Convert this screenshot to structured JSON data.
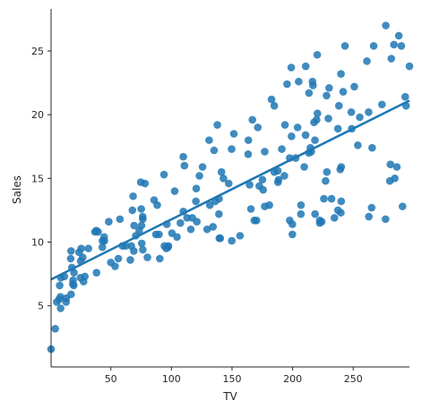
{
  "chart_data": {
    "type": "scatter",
    "title": "",
    "xlabel": "TV",
    "ylabel": "Sales",
    "xlim": [
      0.7,
      296.4
    ],
    "ylim": [
      0.2,
      28.3
    ],
    "xticks": [
      50,
      100,
      150,
      200,
      250
    ],
    "yticks": [
      5,
      10,
      15,
      20,
      25
    ],
    "grid": false,
    "legend": "none",
    "point_color": "#1f77b4",
    "regression": {
      "intercept": 7.0326,
      "slope": 0.0475,
      "color": "#1f77b4"
    },
    "points": [
      {
        "x": 230.1,
        "y": 22.1
      },
      {
        "x": 44.5,
        "y": 10.4
      },
      {
        "x": 17.2,
        "y": 9.3
      },
      {
        "x": 151.5,
        "y": 18.5
      },
      {
        "x": 180.8,
        "y": 12.9
      },
      {
        "x": 8.7,
        "y": 7.2
      },
      {
        "x": 57.5,
        "y": 11.8
      },
      {
        "x": 120.2,
        "y": 13.2
      },
      {
        "x": 8.6,
        "y": 4.8
      },
      {
        "x": 199.8,
        "y": 10.6
      },
      {
        "x": 66.1,
        "y": 8.6
      },
      {
        "x": 214.7,
        "y": 17.4
      },
      {
        "x": 23.8,
        "y": 9.2
      },
      {
        "x": 97.5,
        "y": 9.7
      },
      {
        "x": 204.1,
        "y": 19.0
      },
      {
        "x": 195.4,
        "y": 22.4
      },
      {
        "x": 67.8,
        "y": 12.5
      },
      {
        "x": 281.4,
        "y": 24.4
      },
      {
        "x": 69.2,
        "y": 11.3
      },
      {
        "x": 147.3,
        "y": 14.6
      },
      {
        "x": 218.4,
        "y": 18.0
      },
      {
        "x": 237.4,
        "y": 12.5
      },
      {
        "x": 13.2,
        "y": 5.6
      },
      {
        "x": 228.3,
        "y": 15.5
      },
      {
        "x": 62.3,
        "y": 9.7
      },
      {
        "x": 262.9,
        "y": 12.0
      },
      {
        "x": 142.9,
        "y": 15.0
      },
      {
        "x": 240.1,
        "y": 15.9
      },
      {
        "x": 248.8,
        "y": 18.9
      },
      {
        "x": 70.6,
        "y": 10.5
      },
      {
        "x": 292.9,
        "y": 21.4
      },
      {
        "x": 112.9,
        "y": 11.9
      },
      {
        "x": 97.2,
        "y": 9.6
      },
      {
        "x": 265.6,
        "y": 17.4
      },
      {
        "x": 95.7,
        "y": 9.5
      },
      {
        "x": 290.7,
        "y": 12.8
      },
      {
        "x": 266.9,
        "y": 25.4
      },
      {
        "x": 74.7,
        "y": 14.7
      },
      {
        "x": 43.1,
        "y": 10.1
      },
      {
        "x": 228.0,
        "y": 21.5
      },
      {
        "x": 202.5,
        "y": 16.6
      },
      {
        "x": 177.0,
        "y": 17.1
      },
      {
        "x": 293.6,
        "y": 20.7
      },
      {
        "x": 206.9,
        "y": 12.9
      },
      {
        "x": 25.1,
        "y": 8.5
      },
      {
        "x": 175.1,
        "y": 14.9
      },
      {
        "x": 89.7,
        "y": 10.6
      },
      {
        "x": 239.9,
        "y": 23.2
      },
      {
        "x": 227.2,
        "y": 14.8
      },
      {
        "x": 66.9,
        "y": 9.7
      },
      {
        "x": 199.8,
        "y": 11.4
      },
      {
        "x": 100.4,
        "y": 10.7
      },
      {
        "x": 216.4,
        "y": 22.6
      },
      {
        "x": 182.6,
        "y": 21.2
      },
      {
        "x": 262.7,
        "y": 20.2
      },
      {
        "x": 198.9,
        "y": 23.7
      },
      {
        "x": 7.3,
        "y": 5.5
      },
      {
        "x": 136.2,
        "y": 13.2
      },
      {
        "x": 210.8,
        "y": 23.8
      },
      {
        "x": 210.7,
        "y": 18.4
      },
      {
        "x": 53.5,
        "y": 8.1
      },
      {
        "x": 261.3,
        "y": 24.2
      },
      {
        "x": 239.3,
        "y": 15.7
      },
      {
        "x": 102.7,
        "y": 14.0
      },
      {
        "x": 131.1,
        "y": 18.0
      },
      {
        "x": 69.0,
        "y": 9.3
      },
      {
        "x": 31.5,
        "y": 9.5
      },
      {
        "x": 139.3,
        "y": 13.4
      },
      {
        "x": 237.4,
        "y": 18.9
      },
      {
        "x": 216.8,
        "y": 22.3
      },
      {
        "x": 199.1,
        "y": 18.3
      },
      {
        "x": 109.8,
        "y": 12.4
      },
      {
        "x": 26.8,
        "y": 8.8
      },
      {
        "x": 129.4,
        "y": 11.0
      },
      {
        "x": 213.4,
        "y": 17.0
      },
      {
        "x": 16.9,
        "y": 8.7
      },
      {
        "x": 27.5,
        "y": 6.9
      },
      {
        "x": 120.5,
        "y": 14.2
      },
      {
        "x": 5.4,
        "y": 5.3
      },
      {
        "x": 116.0,
        "y": 11.0
      },
      {
        "x": 76.4,
        "y": 11.8
      },
      {
        "x": 239.8,
        "y": 12.3
      },
      {
        "x": 75.3,
        "y": 11.3
      },
      {
        "x": 68.4,
        "y": 13.6
      },
      {
        "x": 213.5,
        "y": 21.7
      },
      {
        "x": 193.2,
        "y": 15.2
      },
      {
        "x": 76.3,
        "y": 12.0
      },
      {
        "x": 110.7,
        "y": 16.0
      },
      {
        "x": 88.3,
        "y": 12.9
      },
      {
        "x": 109.8,
        "y": 16.7
      },
      {
        "x": 134.3,
        "y": 11.2
      },
      {
        "x": 28.6,
        "y": 7.3
      },
      {
        "x": 217.7,
        "y": 19.4
      },
      {
        "x": 250.9,
        "y": 22.2
      },
      {
        "x": 107.4,
        "y": 11.5
      },
      {
        "x": 163.3,
        "y": 16.9
      },
      {
        "x": 197.6,
        "y": 11.7
      },
      {
        "x": 184.9,
        "y": 15.5
      },
      {
        "x": 289.7,
        "y": 25.4
      },
      {
        "x": 135.2,
        "y": 17.2
      },
      {
        "x": 222.4,
        "y": 11.7
      },
      {
        "x": 296.4,
        "y": 23.8
      },
      {
        "x": 280.2,
        "y": 14.8
      },
      {
        "x": 187.9,
        "y": 14.7
      },
      {
        "x": 238.2,
        "y": 20.7
      },
      {
        "x": 137.9,
        "y": 19.2
      },
      {
        "x": 25.0,
        "y": 7.2
      },
      {
        "x": 90.4,
        "y": 8.7
      },
      {
        "x": 13.1,
        "y": 5.3
      },
      {
        "x": 255.4,
        "y": 19.8
      },
      {
        "x": 225.8,
        "y": 13.4
      },
      {
        "x": 241.7,
        "y": 21.8
      },
      {
        "x": 175.7,
        "y": 14.1
      },
      {
        "x": 209.6,
        "y": 15.9
      },
      {
        "x": 78.2,
        "y": 14.6
      },
      {
        "x": 75.1,
        "y": 12.6
      },
      {
        "x": 139.2,
        "y": 12.2
      },
      {
        "x": 76.4,
        "y": 9.4
      },
      {
        "x": 125.7,
        "y": 15.9
      },
      {
        "x": 19.4,
        "y": 6.6
      },
      {
        "x": 141.3,
        "y": 15.5
      },
      {
        "x": 18.8,
        "y": 7.0
      },
      {
        "x": 224.0,
        "y": 11.6
      },
      {
        "x": 123.1,
        "y": 15.2
      },
      {
        "x": 229.5,
        "y": 19.7
      },
      {
        "x": 87.2,
        "y": 10.6
      },
      {
        "x": 7.8,
        "y": 6.6
      },
      {
        "x": 80.2,
        "y": 8.8
      },
      {
        "x": 220.3,
        "y": 24.7
      },
      {
        "x": 59.6,
        "y": 9.7
      },
      {
        "x": 0.7,
        "y": 1.6
      },
      {
        "x": 265.2,
        "y": 12.7
      },
      {
        "x": 8.4,
        "y": 5.7
      },
      {
        "x": 219.8,
        "y": 19.6
      },
      {
        "x": 36.9,
        "y": 10.8
      },
      {
        "x": 48.3,
        "y": 11.6
      },
      {
        "x": 25.6,
        "y": 9.5
      },
      {
        "x": 273.7,
        "y": 20.8
      },
      {
        "x": 43.0,
        "y": 9.6
      },
      {
        "x": 184.9,
        "y": 20.7
      },
      {
        "x": 73.4,
        "y": 10.9
      },
      {
        "x": 193.7,
        "y": 19.2
      },
      {
        "x": 220.5,
        "y": 20.1
      },
      {
        "x": 104.6,
        "y": 10.4
      },
      {
        "x": 96.2,
        "y": 11.4
      },
      {
        "x": 140.3,
        "y": 10.3
      },
      {
        "x": 240.1,
        "y": 13.2
      },
      {
        "x": 243.2,
        "y": 25.4
      },
      {
        "x": 38.0,
        "y": 10.9
      },
      {
        "x": 44.7,
        "y": 10.1
      },
      {
        "x": 280.7,
        "y": 16.1
      },
      {
        "x": 121.0,
        "y": 11.6
      },
      {
        "x": 197.6,
        "y": 16.6
      },
      {
        "x": 171.3,
        "y": 19.0
      },
      {
        "x": 187.8,
        "y": 15.6
      },
      {
        "x": 4.1,
        "y": 3.2
      },
      {
        "x": 93.9,
        "y": 15.3
      },
      {
        "x": 149.8,
        "y": 10.1
      },
      {
        "x": 11.7,
        "y": 7.3
      },
      {
        "x": 131.7,
        "y": 12.9
      },
      {
        "x": 172.5,
        "y": 14.4
      },
      {
        "x": 85.7,
        "y": 13.3
      },
      {
        "x": 188.4,
        "y": 14.9
      },
      {
        "x": 163.5,
        "y": 18.0
      },
      {
        "x": 117.2,
        "y": 11.9
      },
      {
        "x": 234.5,
        "y": 11.9
      },
      {
        "x": 17.9,
        "y": 8.0
      },
      {
        "x": 206.8,
        "y": 12.2
      },
      {
        "x": 215.4,
        "y": 17.1
      },
      {
        "x": 284.3,
        "y": 15.0
      },
      {
        "x": 50.0,
        "y": 8.4
      },
      {
        "x": 164.5,
        "y": 14.5
      },
      {
        "x": 19.6,
        "y": 7.6
      },
      {
        "x": 168.4,
        "y": 11.7
      },
      {
        "x": 222.4,
        "y": 11.5
      },
      {
        "x": 276.9,
        "y": 27.0
      },
      {
        "x": 248.4,
        "y": 20.2
      },
      {
        "x": 170.2,
        "y": 11.7
      },
      {
        "x": 276.7,
        "y": 11.8
      },
      {
        "x": 165.6,
        "y": 12.6
      },
      {
        "x": 156.6,
        "y": 10.5
      },
      {
        "x": 218.5,
        "y": 12.2
      },
      {
        "x": 56.2,
        "y": 8.7
      },
      {
        "x": 287.6,
        "y": 26.2
      },
      {
        "x": 253.8,
        "y": 17.6
      },
      {
        "x": 205.0,
        "y": 22.6
      },
      {
        "x": 139.5,
        "y": 10.3
      },
      {
        "x": 191.1,
        "y": 17.3
      },
      {
        "x": 286.0,
        "y": 15.9
      },
      {
        "x": 18.7,
        "y": 6.7
      },
      {
        "x": 39.5,
        "y": 10.8
      },
      {
        "x": 75.5,
        "y": 9.9
      },
      {
        "x": 17.2,
        "y": 5.9
      },
      {
        "x": 166.8,
        "y": 19.6
      },
      {
        "x": 149.7,
        "y": 17.3
      },
      {
        "x": 38.2,
        "y": 7.6
      },
      {
        "x": 94.2,
        "y": 9.7
      },
      {
        "x": 177.0,
        "y": 12.8
      },
      {
        "x": 283.6,
        "y": 25.5
      },
      {
        "x": 232.1,
        "y": 13.4
      }
    ]
  }
}
